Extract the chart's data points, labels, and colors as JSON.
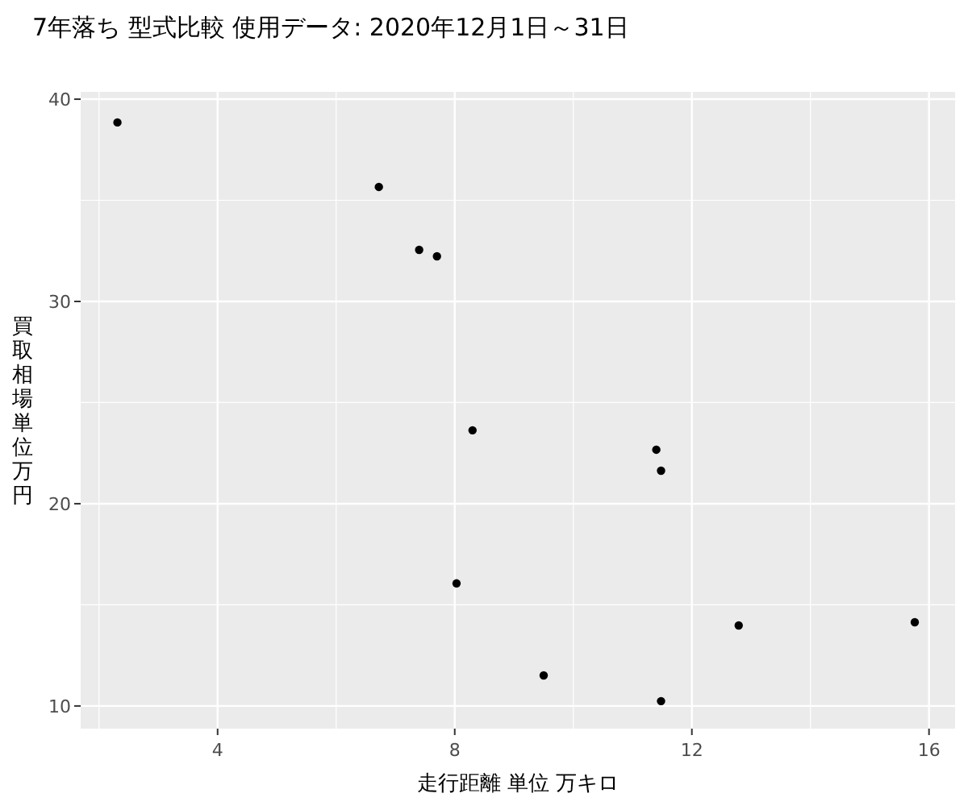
{
  "chart_data": {
    "type": "scatter",
    "title": "7年落ち 型式比較 使用データ: 2020年12月1日～31日",
    "xlabel": "走行距離 単位 万キロ",
    "ylabel": "買取相場単位万円",
    "x": [
      2.31,
      6.72,
      7.4,
      7.7,
      8.3,
      8.03,
      9.5,
      11.4,
      11.48,
      11.48,
      12.79,
      15.76
    ],
    "series": [
      {
        "color": "#000000",
        "values": [
          38.85,
          35.66,
          32.55,
          32.23,
          23.63,
          16.06,
          11.51,
          22.67,
          21.63,
          10.24,
          13.98,
          14.14
        ]
      }
    ],
    "xlim": [
      1.69,
      16.44
    ],
    "xticks": [
      4,
      8,
      12,
      16
    ],
    "ylim": [
      8.88,
      40.36
    ],
    "yticks": [
      10,
      20,
      30,
      40
    ],
    "grid": true,
    "marker": "circle"
  }
}
